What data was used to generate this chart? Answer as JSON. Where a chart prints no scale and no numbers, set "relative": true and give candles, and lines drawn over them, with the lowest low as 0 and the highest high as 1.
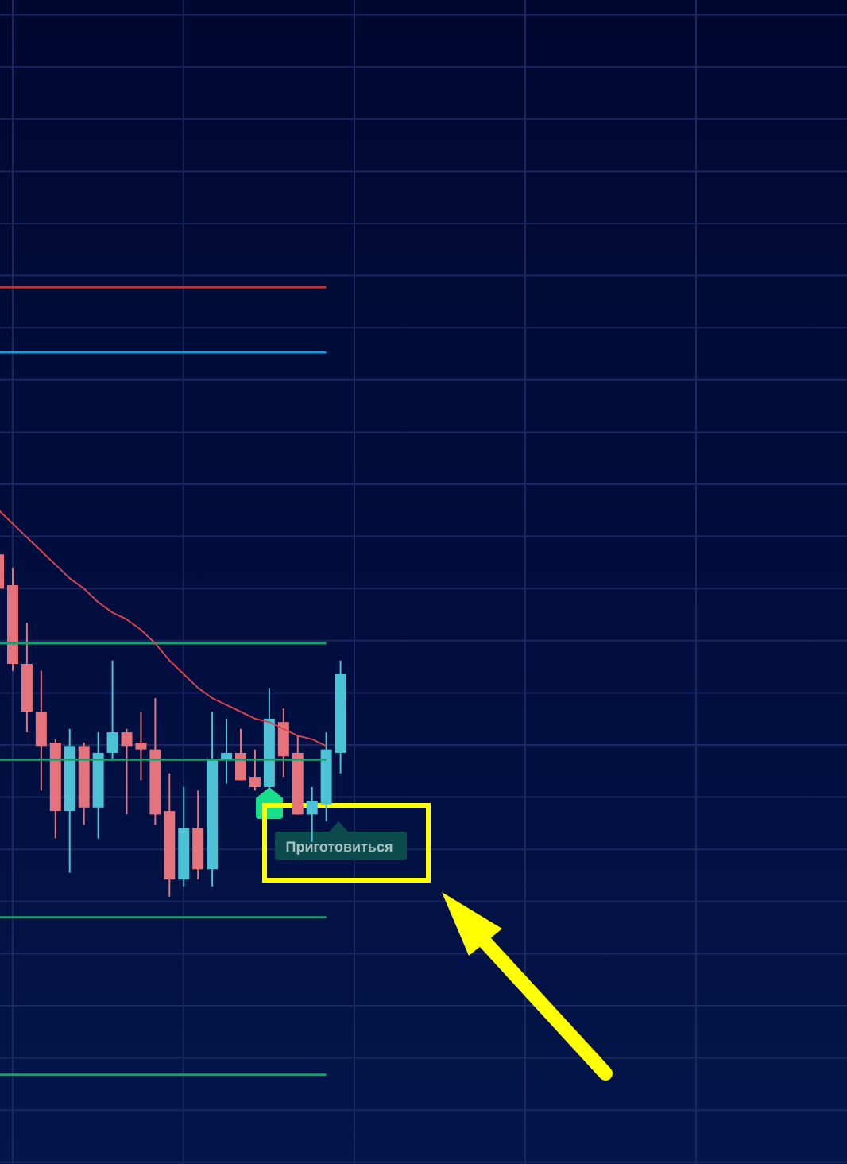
{
  "chart_data": {
    "type": "candlestick",
    "relative": true,
    "categories": [
      null,
      null,
      null,
      null,
      null,
      null,
      null,
      null,
      null,
      null,
      null,
      null,
      null,
      null,
      null,
      null,
      null,
      null,
      null,
      null,
      null,
      null,
      null,
      null,
      null
    ],
    "ohlc": [
      [
        1.0,
        1.0,
        0.9,
        0.9
      ],
      [
        0.91,
        0.96,
        0.66,
        0.68
      ],
      [
        0.68,
        0.8,
        0.48,
        0.54
      ],
      [
        0.54,
        0.66,
        0.31,
        0.44
      ],
      [
        0.45,
        0.46,
        0.17,
        0.25
      ],
      [
        0.25,
        0.49,
        0.07,
        0.44
      ],
      [
        0.44,
        0.45,
        0.21,
        0.26
      ],
      [
        0.26,
        0.48,
        0.17,
        0.42
      ],
      [
        0.42,
        0.69,
        0.4,
        0.48
      ],
      [
        0.48,
        0.49,
        0.24,
        0.44
      ],
      [
        0.45,
        0.54,
        0.34,
        0.43
      ],
      [
        0.43,
        0.58,
        0.21,
        0.24
      ],
      [
        0.25,
        0.36,
        0,
        0.05
      ],
      [
        0.05,
        0.32,
        0.03,
        0.2
      ],
      [
        0.2,
        0.31,
        0.05,
        0.08
      ],
      [
        0.08,
        0.54,
        0.03,
        0.4
      ],
      [
        0.4,
        0.52,
        0.33,
        0.42
      ],
      [
        0.42,
        0.49,
        0.34,
        0.34
      ],
      [
        0.35,
        0.43,
        0.31,
        0.32
      ],
      [
        0.32,
        0.61,
        0.31,
        0.52
      ],
      [
        0.51,
        0.55,
        0.35,
        0.41
      ],
      [
        0.42,
        0.47,
        0.24,
        0.24
      ],
      [
        0.24,
        0.32,
        0.16,
        0.28
      ],
      [
        0.27,
        0.48,
        0.22,
        0.43
      ],
      [
        0.42,
        0.69,
        0.36,
        0.65
      ]
    ],
    "colors": [
      "#e5737b",
      "#e5737b",
      "#e5737b",
      "#e5737b",
      "#e5737b",
      "#4dc1d6",
      "#e5737b",
      "#4dc1d6",
      "#4dc1d6",
      "#e5737b",
      "#e5737b",
      "#e5737b",
      "#e5737b",
      "#4dc1d6",
      "#e5737b",
      "#4dc1d6",
      "#4dc1d6",
      "#e5737b",
      "#e5737b",
      "#4dc1d6",
      "#e5737b",
      "#e5737b",
      "#4dc1d6",
      "#4dc1d6",
      "#4dc1d6"
    ],
    "series": [
      {
        "type": "line",
        "color": "#d9434f",
        "values": [
          1.13,
          1.09,
          1.05,
          1.01,
          0.97,
          0.93,
          0.9,
          0.86,
          0.83,
          0.81,
          0.78,
          0.74,
          0.69,
          0.65,
          0.61,
          0.58,
          0.56,
          0.54,
          0.52,
          0.51,
          0.49,
          0.47,
          0.46,
          0.44,
          null
        ]
      }
    ],
    "ref_lines": [
      {
        "axis": "y",
        "value": 1.78,
        "color": "#b8323c"
      },
      {
        "axis": "y",
        "value": 1.59,
        "color": "#1a9ad6"
      },
      {
        "axis": "y",
        "value": 0.74,
        "color": "#1d9e72"
      },
      {
        "axis": "y",
        "value": 0.4,
        "color": "#1d9e72"
      },
      {
        "axis": "y",
        "value": -0.06,
        "color": "#1d9e72"
      },
      {
        "axis": "y",
        "value": -0.52,
        "color": "#1d9e72"
      }
    ],
    "grid": true,
    "annotations": [
      "Приготовиться"
    ]
  }
}
